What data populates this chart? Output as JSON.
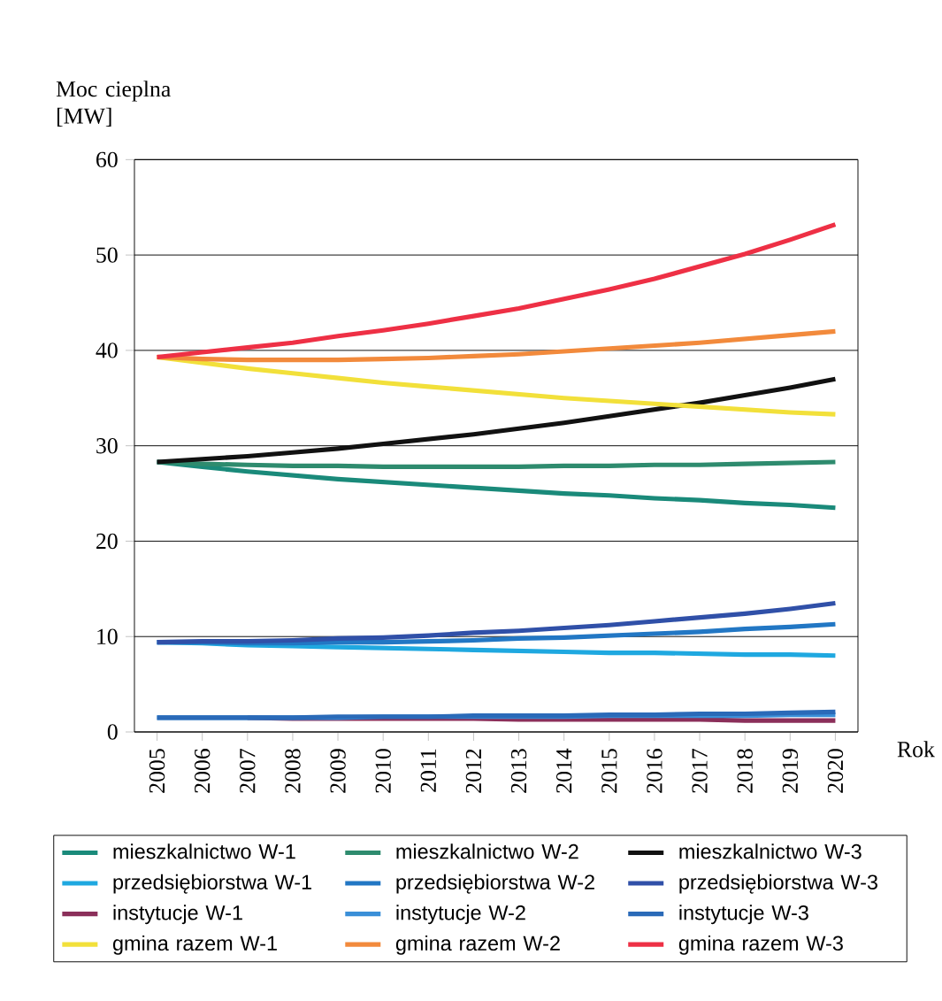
{
  "chart_data": {
    "type": "line",
    "ylabel": "Moc cieplna [MW]",
    "xlabel": "Rok",
    "categories": [
      "2005",
      "2006",
      "2007",
      "2008",
      "2009",
      "2010",
      "2011",
      "2012",
      "2013",
      "2014",
      "2015",
      "2016",
      "2017",
      "2018",
      "2019",
      "2020"
    ],
    "ylim": [
      0,
      60
    ],
    "yticks": [
      0,
      10,
      20,
      30,
      40,
      50,
      60
    ],
    "grid": "y",
    "legend": "bottom",
    "series": [
      {
        "name": "mieszkalnictwo W-1",
        "color": "#1a8a7a",
        "values": [
          28.3,
          27.8,
          27.3,
          26.9,
          26.5,
          26.2,
          25.9,
          25.6,
          25.3,
          25.0,
          24.8,
          24.5,
          24.3,
          24.0,
          23.8,
          23.5
        ]
      },
      {
        "name": "mieszkalnictwo W-2",
        "color": "#2e8b6e",
        "values": [
          28.3,
          28.1,
          28.0,
          27.9,
          27.9,
          27.8,
          27.8,
          27.8,
          27.8,
          27.9,
          27.9,
          28.0,
          28.0,
          28.1,
          28.2,
          28.3
        ]
      },
      {
        "name": "mieszkalnictwo W-3",
        "color": "#111111",
        "values": [
          28.3,
          28.6,
          28.9,
          29.3,
          29.7,
          30.2,
          30.7,
          31.2,
          31.8,
          32.4,
          33.1,
          33.8,
          34.5,
          35.3,
          36.1,
          37.0
        ]
      },
      {
        "name": "przedsiębiorstwa W-1",
        "color": "#1fa8e0",
        "values": [
          9.4,
          9.3,
          9.1,
          9.0,
          8.9,
          8.8,
          8.7,
          8.6,
          8.5,
          8.4,
          8.3,
          8.3,
          8.2,
          8.1,
          8.1,
          8.0
        ]
      },
      {
        "name": "przedsiębiorstwa W-2",
        "color": "#2277c4",
        "values": [
          9.4,
          9.4,
          9.3,
          9.3,
          9.4,
          9.4,
          9.5,
          9.6,
          9.8,
          9.9,
          10.1,
          10.3,
          10.5,
          10.8,
          11.0,
          11.3
        ]
      },
      {
        "name": "przedsiębiorstwa W-3",
        "color": "#3050a8",
        "values": [
          9.4,
          9.5,
          9.5,
          9.6,
          9.8,
          9.9,
          10.1,
          10.4,
          10.6,
          10.9,
          11.2,
          11.6,
          12.0,
          12.4,
          12.9,
          13.5
        ]
      },
      {
        "name": "instytucje  W-1",
        "color": "#8b2f5a",
        "values": [
          null,
          null,
          1.5,
          1.4,
          1.4,
          1.4,
          1.4,
          1.4,
          1.3,
          1.3,
          1.3,
          1.3,
          1.3,
          1.2,
          1.2,
          1.2
        ]
      },
      {
        "name": "instytucje  W-2",
        "color": "#3a8fd8",
        "values": [
          1.5,
          1.5,
          1.5,
          1.5,
          1.5,
          1.6,
          1.6,
          1.6,
          1.6,
          1.6,
          1.7,
          1.7,
          1.7,
          1.7,
          1.8,
          1.8
        ]
      },
      {
        "name": "instytucje  W-3",
        "color": "#2a6ab8",
        "values": [
          1.5,
          1.5,
          1.5,
          1.5,
          1.6,
          1.6,
          1.6,
          1.7,
          1.7,
          1.7,
          1.8,
          1.8,
          1.9,
          1.9,
          2.0,
          2.1
        ]
      },
      {
        "name": "gmina razem W-1",
        "color": "#f2e03a",
        "values": [
          39.3,
          38.7,
          38.1,
          37.6,
          37.1,
          36.6,
          36.2,
          35.8,
          35.4,
          35.0,
          34.7,
          34.4,
          34.1,
          33.8,
          33.5,
          33.3
        ]
      },
      {
        "name": "gmina  razem W-2",
        "color": "#f28a3c",
        "values": [
          39.3,
          39.1,
          39.0,
          39.0,
          39.0,
          39.1,
          39.2,
          39.4,
          39.6,
          39.9,
          40.2,
          40.5,
          40.8,
          41.2,
          41.6,
          42.0
        ]
      },
      {
        "name": "gmina razem W-3",
        "color": "#ee3045",
        "values": [
          39.3,
          39.8,
          40.3,
          40.8,
          41.5,
          42.1,
          42.8,
          43.6,
          44.4,
          45.4,
          46.4,
          47.5,
          48.8,
          50.1,
          51.6,
          53.2
        ]
      }
    ]
  }
}
